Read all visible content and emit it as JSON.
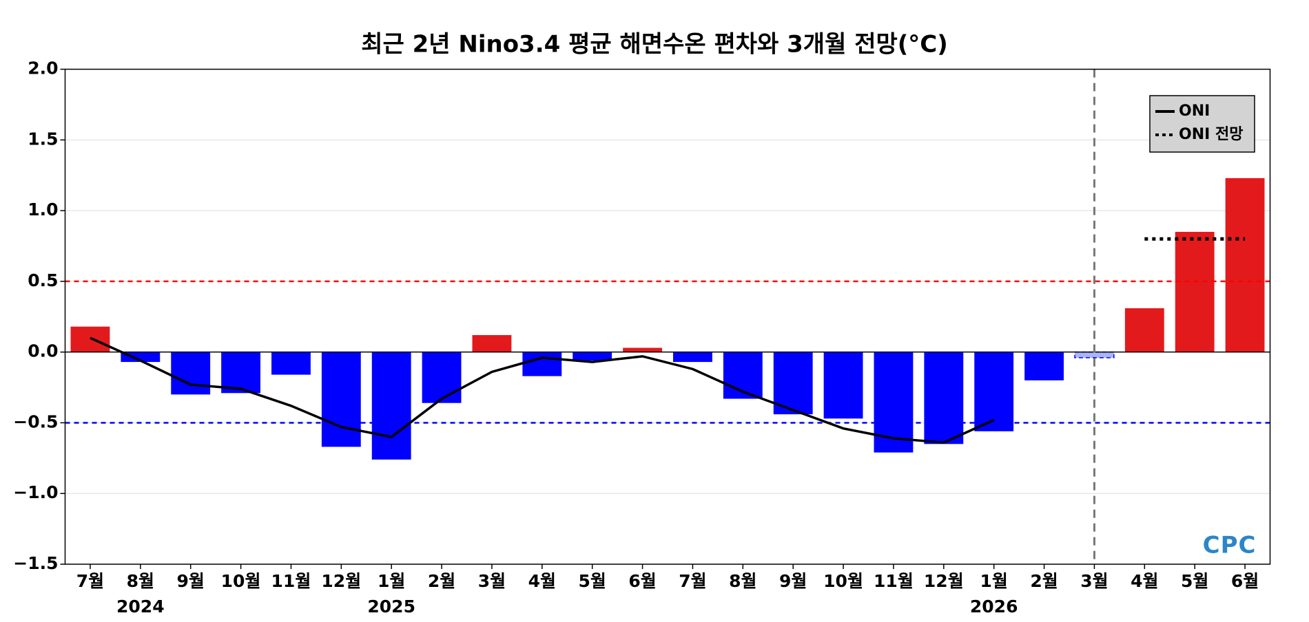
{
  "chart_data": {
    "type": "bar",
    "title": "최근 2년 Nino3.4 평균 해면수온 편차와 3개월 전망(°C)",
    "categories": [
      "7월",
      "8월",
      "9월",
      "10월",
      "11월",
      "12월",
      "1월",
      "2월",
      "3월",
      "4월",
      "5월",
      "6월",
      "7월",
      "8월",
      "9월",
      "10월",
      "11월",
      "12월",
      "1월",
      "2월",
      "3월",
      "4월",
      "5월",
      "6월"
    ],
    "year_labels": [
      null,
      "2024",
      null,
      null,
      null,
      null,
      "2025",
      null,
      null,
      null,
      null,
      null,
      null,
      null,
      null,
      null,
      null,
      null,
      "2026",
      null,
      null,
      null,
      null,
      null
    ],
    "values": [
      0.18,
      -0.07,
      -0.3,
      -0.29,
      -0.16,
      -0.67,
      -0.76,
      -0.36,
      0.12,
      -0.17,
      -0.06,
      0.03,
      -0.07,
      -0.33,
      -0.44,
      -0.47,
      -0.71,
      -0.65,
      -0.56,
      -0.2,
      -0.04,
      0.31,
      0.85,
      1.23
    ],
    "colors": [
      "#e31a1c",
      "#0000ff",
      "#0000ff",
      "#0000ff",
      "#0000ff",
      "#0000ff",
      "#0000ff",
      "#0000ff",
      "#e31a1c",
      "#0000ff",
      "#0000ff",
      "#e31a1c",
      "#0000ff",
      "#0000ff",
      "#0000ff",
      "#0000ff",
      "#0000ff",
      "#0000ff",
      "#0000ff",
      "#0000ff",
      "#aab4ff",
      "#e31a1c",
      "#e31a1c",
      "#e31a1c"
    ],
    "series": [
      {
        "name": "ONI",
        "color": "#000000",
        "style": "solid",
        "values": [
          0.1,
          -0.06,
          -0.23,
          -0.26,
          -0.38,
          -0.53,
          -0.6,
          -0.33,
          -0.14,
          -0.04,
          -0.07,
          -0.03,
          -0.12,
          -0.28,
          -0.41,
          -0.54,
          -0.61,
          -0.64,
          -0.48,
          null,
          null,
          null,
          null,
          null
        ]
      },
      {
        "name": "ONI 전망",
        "color": "#000000",
        "style": "dotted",
        "values": [
          null,
          null,
          null,
          null,
          null,
          null,
          null,
          null,
          null,
          null,
          null,
          null,
          null,
          null,
          null,
          null,
          null,
          null,
          null,
          null,
          null,
          0.8,
          0.8,
          0.8
        ]
      }
    ],
    "thresholds": [
      {
        "value": 0.5,
        "color": "#ff0000"
      },
      {
        "value": -0.5,
        "color": "#0000ff"
      }
    ],
    "ylim": [
      -1.5,
      2.0
    ],
    "yticks": [
      {
        "value": -1.5,
        "label": "−1.5"
      },
      {
        "value": -1.0,
        "label": "−1.0"
      },
      {
        "value": -0.5,
        "label": "−0.5"
      },
      {
        "value": 0,
        "label": "0.0"
      },
      {
        "value": 0.5,
        "label": "0.5"
      },
      {
        "value": 1.0,
        "label": "1.0"
      },
      {
        "value": 1.5,
        "label": "1.5"
      },
      {
        "value": 2.0,
        "label": "2.0"
      }
    ],
    "grid": true,
    "legend": "upper right",
    "logo": "CPC"
  }
}
